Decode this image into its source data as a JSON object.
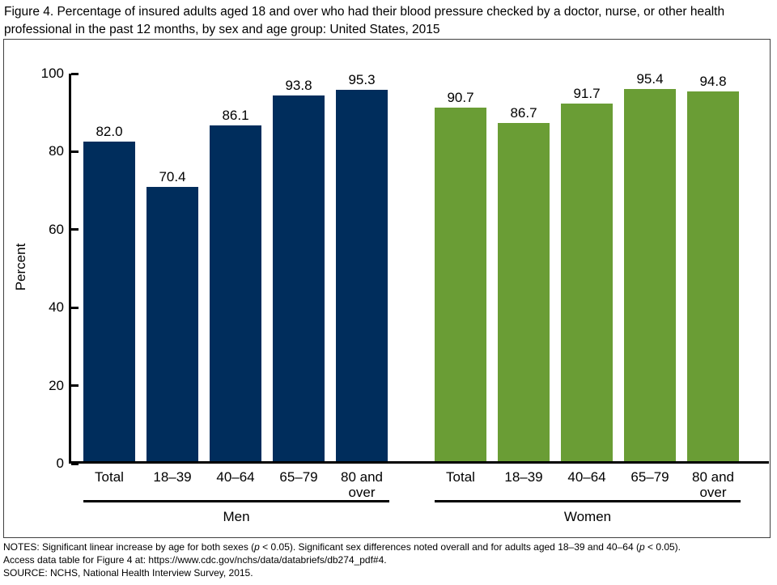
{
  "chart_data": {
    "type": "bar",
    "title": "Figure 4. Percentage of insured adults aged 18 and over who had their blood pressure checked by a doctor, nurse, or other health professional in the past 12 months, by sex and age group: United States, 2015",
    "categories": [
      "Total",
      "18–39",
      "40–64",
      "65–79",
      "80 and over"
    ],
    "series": [
      {
        "name": "Men",
        "color": "#002d5c",
        "values": [
          82.0,
          70.4,
          86.1,
          93.8,
          95.3
        ],
        "value_labels": [
          "82.0",
          "70.4",
          "86.1",
          "93.8",
          "95.3"
        ]
      },
      {
        "name": "Women",
        "color": "#6a9d35",
        "values": [
          90.7,
          86.7,
          91.7,
          95.4,
          94.8
        ],
        "value_labels": [
          "90.7",
          "86.7",
          "91.7",
          "95.4",
          "94.8"
        ]
      }
    ],
    "xlabel": "",
    "ylabel": "Percent",
    "ylim": [
      0,
      100
    ],
    "yticks": [
      0,
      20,
      40,
      60,
      80,
      100
    ],
    "grid": false,
    "legend_position": "none",
    "value_labels_shown": true
  },
  "notes": {
    "lines": [
      {
        "segments": [
          {
            "text": "NOTES: Significant linear increase by age for both sexes (",
            "italic": false
          },
          {
            "text": "p",
            "italic": true
          },
          {
            "text": " < 0.05). Significant sex differences noted overall and for adults aged 18–39 and 40–64 (",
            "italic": false
          },
          {
            "text": "p",
            "italic": true
          },
          {
            "text": " < 0.05).",
            "italic": false
          }
        ]
      },
      {
        "segments": [
          {
            "text": "Access data table for Figure 4 at: https://www.cdc.gov/nchs/data/databriefs/db274_pdf#4.",
            "italic": false
          }
        ]
      },
      {
        "segments": [
          {
            "text": "SOURCE: NCHS, National Health Interview Survey, 2015.",
            "italic": false
          }
        ]
      }
    ]
  }
}
